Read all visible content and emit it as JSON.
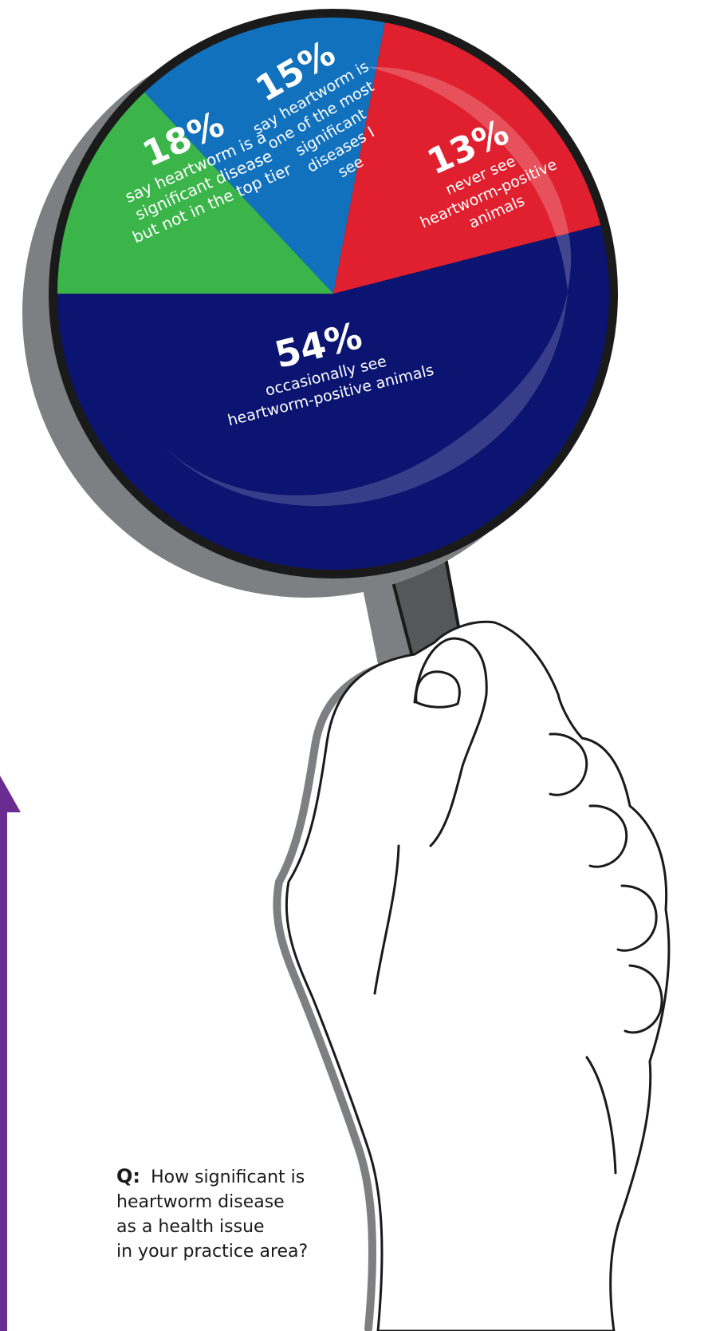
{
  "chart_data": {
    "type": "pie",
    "slices": [
      {
        "value": 54,
        "percent_label": "54%",
        "lines": [
          "occasionally see",
          "heartworm-positive animals"
        ],
        "color": "#0b1470"
      },
      {
        "value": 18,
        "percent_label": "18%",
        "lines": [
          "say heartworm is a",
          "significant disease",
          "but not in the top tier"
        ],
        "color": "#e0202e"
      },
      {
        "value": 15,
        "percent_label": "15%",
        "lines": [
          "say heartworm is",
          "one of the most",
          "significant",
          "diseases I",
          "see"
        ],
        "color": "#1271bd"
      },
      {
        "value": 13,
        "percent_label": "13%",
        "lines": [
          "never see",
          "heartworm-positive",
          "animals"
        ],
        "color": "#3bb54a"
      }
    ]
  },
  "question": {
    "marker": "Q:",
    "lines": [
      "How significant is",
      "heartworm disease",
      "as a health issue",
      "in your practice area?"
    ]
  },
  "colors": {
    "rim": "#1a1a1a",
    "shadow": "#7d7f82",
    "handle": "#555759",
    "arrow": "#6a2c91"
  },
  "icons": {
    "magnifier": "magnifying-glass-icon",
    "hand": "hand-icon",
    "arrow": "arrow-up-icon"
  }
}
